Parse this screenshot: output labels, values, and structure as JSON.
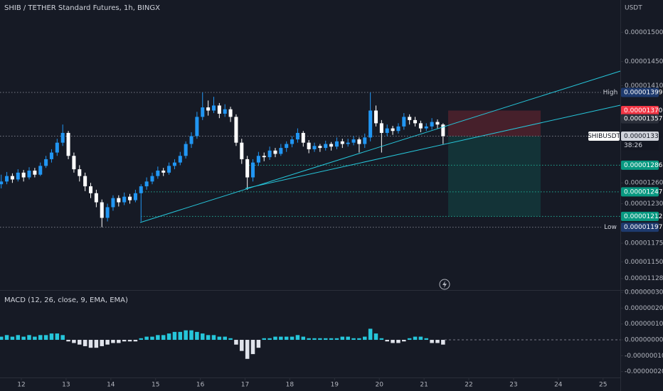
{
  "chart_data": [
    {
      "type": "candlestick",
      "title": "SHIB / TETHER Standard Futures, 1h, BINGX",
      "y_axis_label": "USDT",
      "x": [
        11.55,
        11.675,
        11.8,
        11.925,
        12.05,
        12.175,
        12.3,
        12.425,
        12.55,
        12.675,
        12.8,
        12.925,
        13.05,
        13.175,
        13.3,
        13.425,
        13.55,
        13.675,
        13.8,
        13.925,
        14.05,
        14.175,
        14.3,
        14.425,
        14.55,
        14.675,
        14.8,
        14.925,
        15.05,
        15.175,
        15.3,
        15.425,
        15.55,
        15.675,
        15.8,
        15.925,
        16.05,
        16.175,
        16.3,
        16.425,
        16.55,
        16.675,
        16.8,
        16.925,
        17.05,
        17.175,
        17.3,
        17.425,
        17.55,
        17.675,
        17.8,
        17.925,
        18.05,
        18.175,
        18.3,
        18.425,
        18.55,
        18.675,
        18.8,
        18.925,
        19.05,
        19.175,
        19.3,
        19.425,
        19.55,
        19.675,
        19.8,
        19.925,
        20.05,
        20.175,
        20.3,
        20.425,
        20.55,
        20.675,
        20.8,
        20.925,
        21.05,
        21.175,
        21.3,
        21.425
      ],
      "open": [
        1.258e-05,
        1.262e-05,
        1.27e-05,
        1.265e-05,
        1.275e-05,
        1.268e-05,
        1.278e-05,
        1.272e-05,
        1.285e-05,
        1.295e-05,
        1.305e-05,
        1.32e-05,
        1.335e-05,
        1.3e-05,
        1.28e-05,
        1.27e-05,
        1.255e-05,
        1.245e-05,
        1.232e-05,
        1.21e-05,
        1.225e-05,
        1.238e-05,
        1.232e-05,
        1.24e-05,
        1.235e-05,
        1.245e-05,
        1.255e-05,
        1.262e-05,
        1.27e-05,
        1.278e-05,
        1.275e-05,
        1.285e-05,
        1.29e-05,
        1.3e-05,
        1.318e-05,
        1.33e-05,
        1.36e-05,
        1.375e-05,
        1.37e-05,
        1.378e-05,
        1.365e-05,
        1.372e-05,
        1.36e-05,
        1.32e-05,
        1.295e-05,
        1.268e-05,
        1.29e-05,
        1.3e-05,
        1.298e-05,
        1.308e-05,
        1.303e-05,
        1.312e-05,
        1.318e-05,
        1.325e-05,
        1.335e-05,
        1.32e-05,
        1.31e-05,
        1.315e-05,
        1.312e-05,
        1.318e-05,
        1.314e-05,
        1.322e-05,
        1.318e-05,
        1.32e-05,
        1.325e-05,
        1.318e-05,
        1.328e-05,
        1.37e-05,
        1.35e-05,
        1.335e-05,
        1.342e-05,
        1.338e-05,
        1.345e-05,
        1.36e-05,
        1.355e-05,
        1.35e-05,
        1.342e-05,
        1.345e-05,
        1.352e-05,
        1.348e-05
      ],
      "high": [
        1.272e-05,
        1.276e-05,
        1.274e-05,
        1.28e-05,
        1.279e-05,
        1.283e-05,
        1.282e-05,
        1.29e-05,
        1.3e-05,
        1.31e-05,
        1.326e-05,
        1.348e-05,
        1.338e-05,
        1.305e-05,
        1.286e-05,
        1.275e-05,
        1.26e-05,
        1.25e-05,
        1.236e-05,
        1.23e-05,
        1.242e-05,
        1.242e-05,
        1.246e-05,
        1.244e-05,
        1.25e-05,
        1.258e-05,
        1.268e-05,
        1.275e-05,
        1.284e-05,
        1.282e-05,
        1.29e-05,
        1.295e-05,
        1.306e-05,
        1.322e-05,
        1.336e-05,
        1.368e-05,
        1.399e-05,
        1.386e-05,
        1.392e-05,
        1.382e-05,
        1.38e-05,
        1.376e-05,
        1.364e-05,
        1.326e-05,
        1.3e-05,
        1.295e-05,
        1.306e-05,
        1.305e-05,
        1.314e-05,
        1.312e-05,
        1.318e-05,
        1.322e-05,
        1.33e-05,
        1.342e-05,
        1.338e-05,
        1.324e-05,
        1.32e-05,
        1.318e-05,
        1.323e-05,
        1.321e-05,
        1.328e-05,
        1.326e-05,
        1.326e-05,
        1.33e-05,
        1.328e-05,
        1.334e-05,
        1.399e-05,
        1.378e-05,
        1.355e-05,
        1.348e-05,
        1.346e-05,
        1.35e-05,
        1.366e-05,
        1.364e-05,
        1.36e-05,
        1.354e-05,
        1.35e-05,
        1.358e-05,
        1.356e-05,
        1.35e-05
      ],
      "low": [
        1.252e-05,
        1.258e-05,
        1.26e-05,
        1.262e-05,
        1.262e-05,
        1.265e-05,
        1.268e-05,
        1.27e-05,
        1.282e-05,
        1.29e-05,
        1.3e-05,
        1.315e-05,
        1.295e-05,
        1.275e-05,
        1.262e-05,
        1.248e-05,
        1.238e-05,
        1.225e-05,
        1.197e-05,
        1.205e-05,
        1.22e-05,
        1.226e-05,
        1.228e-05,
        1.23e-05,
        1.232e-05,
        1.205e-05,
        1.25e-05,
        1.258e-05,
        1.266e-05,
        1.27e-05,
        1.272e-05,
        1.28e-05,
        1.286e-05,
        1.296e-05,
        1.312e-05,
        1.326e-05,
        1.355e-05,
        1.362e-05,
        1.366e-05,
        1.358e-05,
        1.36e-05,
        1.352e-05,
        1.315e-05,
        1.288e-05,
        1.25e-05,
        1.262e-05,
        1.285e-05,
        1.292e-05,
        1.294e-05,
        1.298e-05,
        1.3e-05,
        1.306e-05,
        1.313e-05,
        1.32e-05,
        1.314e-05,
        1.304e-05,
        1.306e-05,
        1.306e-05,
        1.308e-05,
        1.308e-05,
        1.31e-05,
        1.312e-05,
        1.314e-05,
        1.316e-05,
        1.305e-05,
        1.312e-05,
        1.322e-05,
        1.345e-05,
        1.305e-05,
        1.33e-05,
        1.332e-05,
        1.334e-05,
        1.34e-05,
        1.348e-05,
        1.345e-05,
        1.336e-05,
        1.338e-05,
        1.34e-05,
        1.342e-05,
        1.318e-05
      ],
      "close": [
        1.262e-05,
        1.27e-05,
        1.265e-05,
        1.275e-05,
        1.268e-05,
        1.278e-05,
        1.272e-05,
        1.285e-05,
        1.295e-05,
        1.305e-05,
        1.32e-05,
        1.335e-05,
        1.3e-05,
        1.28e-05,
        1.27e-05,
        1.255e-05,
        1.245e-05,
        1.232e-05,
        1.21e-05,
        1.225e-05,
        1.238e-05,
        1.232e-05,
        1.24e-05,
        1.235e-05,
        1.245e-05,
        1.255e-05,
        1.262e-05,
        1.27e-05,
        1.278e-05,
        1.275e-05,
        1.285e-05,
        1.29e-05,
        1.3e-05,
        1.318e-05,
        1.33e-05,
        1.36e-05,
        1.375e-05,
        1.37e-05,
        1.378e-05,
        1.365e-05,
        1.372e-05,
        1.36e-05,
        1.32e-05,
        1.295e-05,
        1.268e-05,
        1.29e-05,
        1.3e-05,
        1.298e-05,
        1.308e-05,
        1.303e-05,
        1.312e-05,
        1.318e-05,
        1.325e-05,
        1.335e-05,
        1.32e-05,
        1.31e-05,
        1.315e-05,
        1.312e-05,
        1.318e-05,
        1.314e-05,
        1.322e-05,
        1.318e-05,
        1.32e-05,
        1.325e-05,
        1.318e-05,
        1.328e-05,
        1.37e-05,
        1.35e-05,
        1.335e-05,
        1.342e-05,
        1.338e-05,
        1.345e-05,
        1.36e-05,
        1.355e-05,
        1.35e-05,
        1.342e-05,
        1.345e-05,
        1.352e-05,
        1.348e-05,
        1.33e-05
      ],
      "up_color": "#2196f3",
      "down_color": "#ffffff",
      "xlim": [
        11.523,
        25.386
      ],
      "xticks": [
        12,
        13,
        14,
        15,
        16,
        17,
        18,
        19,
        20,
        21,
        22,
        23,
        24,
        25
      ],
      "ylim": [
        1.113e-05,
        1.557e-05
      ],
      "log": true,
      "yticks": [
        {
          "value": 1.5e-05,
          "label": "0.00001500"
        },
        {
          "value": 1.45e-05,
          "label": "0.00001450"
        },
        {
          "value": 1.41e-05,
          "label": "0.00001410"
        },
        {
          "value": 1.26e-05,
          "label": "0.00001260"
        },
        {
          "value": 1.23e-05,
          "label": "0.00001230"
        },
        {
          "value": 1.175e-05,
          "label": "0.00001175"
        },
        {
          "value": 1.15e-05,
          "label": "0.00001150"
        },
        {
          "value": 1.128e-05,
          "label": "0.00001128"
        }
      ],
      "price_labels": [
        {
          "value": 1.399e-05,
          "label": "0.00001399",
          "tag": "High",
          "color": "#1e3a6e",
          "text_color": "#ffffff"
        },
        {
          "value": 1.37e-05,
          "label": "0.00001370",
          "color": "#f23645",
          "text_color": "#ffffff"
        },
        {
          "value": 1.357e-05,
          "label": "0.00001357",
          "color": "#2a2e39",
          "text_color": "#ffffff"
        },
        {
          "value": 1.33e-05,
          "label": "0.00001330",
          "tag": "SHIBUSDT",
          "countdown": "38:26",
          "color": "#d1d4dc",
          "text_color": "#131722"
        },
        {
          "value": 1.286e-05,
          "label": "0.00001286",
          "color": "#089981",
          "text_color": "#ffffff"
        },
        {
          "value": 1.247e-05,
          "label": "0.00001247",
          "color": "#089981",
          "text_color": "#ffffff"
        },
        {
          "value": 1.212e-05,
          "label": "0.00001212",
          "color": "#089981",
          "text_color": "#ffffff"
        },
        {
          "value": 1.197e-05,
          "label": "0.00001197",
          "tag": "Low",
          "color": "#1e3a6e",
          "text_color": "#ffffff"
        }
      ]
    },
    {
      "type": "bar",
      "title": "MACD (12, 26, close, 9, EMA, EMA)",
      "x": [
        11.55,
        11.675,
        11.8,
        11.925,
        12.05,
        12.175,
        12.3,
        12.425,
        12.55,
        12.675,
        12.8,
        12.925,
        13.05,
        13.175,
        13.3,
        13.425,
        13.55,
        13.675,
        13.8,
        13.925,
        14.05,
        14.175,
        14.3,
        14.425,
        14.55,
        14.675,
        14.8,
        14.925,
        15.05,
        15.175,
        15.3,
        15.425,
        15.55,
        15.675,
        15.8,
        15.925,
        16.05,
        16.175,
        16.3,
        16.425,
        16.55,
        16.675,
        16.8,
        16.925,
        17.05,
        17.175,
        17.3,
        17.425,
        17.55,
        17.675,
        17.8,
        17.925,
        18.05,
        18.175,
        18.3,
        18.425,
        18.55,
        18.675,
        18.8,
        18.925,
        19.05,
        19.175,
        19.3,
        19.425,
        19.55,
        19.675,
        19.8,
        19.925,
        20.05,
        20.175,
        20.3,
        20.425,
        20.55,
        20.675,
        20.8,
        20.925,
        21.05,
        21.175,
        21.3,
        21.425
      ],
      "values": [
        2e-08,
        3e-08,
        2e-08,
        3e-08,
        2e-08,
        3e-08,
        2e-08,
        3e-08,
        3e-08,
        4e-08,
        4e-08,
        3e-08,
        -1e-08,
        -2e-08,
        -3e-08,
        -4e-08,
        -5e-08,
        -5e-08,
        -4e-08,
        -3e-08,
        -2e-08,
        -2e-08,
        -1e-08,
        -1e-08,
        -1e-08,
        1e-08,
        2e-08,
        2e-08,
        3e-08,
        3e-08,
        4e-08,
        5e-08,
        5e-08,
        6e-08,
        6e-08,
        5e-08,
        4e-08,
        3e-08,
        3e-08,
        2e-08,
        2e-08,
        1e-08,
        -3e-08,
        -7e-08,
        -1.2e-07,
        -9e-08,
        -5e-08,
        1e-08,
        1e-08,
        2e-08,
        2e-08,
        2e-08,
        2e-08,
        3e-08,
        2e-08,
        1e-08,
        1e-08,
        1e-08,
        1e-08,
        1e-08,
        1e-08,
        2e-08,
        2e-08,
        1e-08,
        1e-08,
        2e-08,
        7e-08,
        4e-08,
        1e-08,
        -1e-08,
        -2e-08,
        -2e-08,
        -1e-08,
        1e-08,
        2e-08,
        2e-08,
        1e-08,
        -2e-08,
        -2e-08,
        -3e-08
      ],
      "positive_color": "#26c6da",
      "negative_color": "#e0e3eb",
      "ylim": [
        -2.42e-07,
        3.14e-07
      ],
      "yticks": [
        {
          "value": 3e-07,
          "label": "0.00000030"
        },
        {
          "value": 2e-07,
          "label": "0.00000020"
        },
        {
          "value": 1e-07,
          "label": "0.00000010"
        },
        {
          "value": 0,
          "label": "0.00000000"
        },
        {
          "value": -1e-07,
          "label": "-0.00000010"
        },
        {
          "value": -2e-07,
          "label": "-0.00000020"
        }
      ]
    }
  ]
}
